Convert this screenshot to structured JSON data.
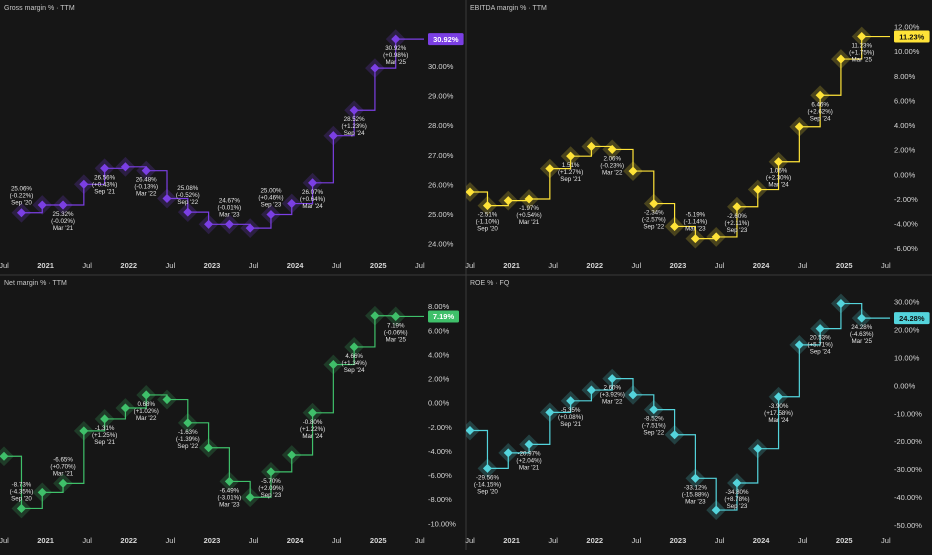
{
  "colors": {
    "background": "#161616",
    "divider": "#3a3a3a",
    "axis_text": "#d6d6d6",
    "gross": "#7b3fe4",
    "ebitda": "#ffe338",
    "net": "#3fc06a",
    "roe": "#54d4dc"
  },
  "chart_data": [
    {
      "type": "line",
      "title": "Gross margin % · TTM",
      "current_value_label": "30.92%",
      "color": "#7b3fe4",
      "y_ticks": [
        "30.00%",
        "29.00%",
        "28.00%",
        "27.00%",
        "26.00%",
        "25.00%",
        "24.00%"
      ],
      "y_tick_values": [
        30,
        29,
        28,
        27,
        26,
        25,
        24
      ],
      "ylim": [
        23.6,
        31.7
      ],
      "x_ticks": [
        "Jul",
        "2021",
        "Jul",
        "2022",
        "Jul",
        "2023",
        "Jul",
        "2024",
        "Jul",
        "2025",
        "Jul"
      ],
      "x_tick_values": [
        2020.5,
        2021,
        2021.5,
        2022,
        2022.5,
        2023,
        2023.5,
        2024,
        2024.5,
        2025,
        2025.5
      ],
      "xlim": [
        2020.5,
        2025.55
      ],
      "series": [
        {
          "x": [
            2020.71,
            2020.96,
            2021.21,
            2021.46,
            2021.71,
            2021.96,
            2022.21,
            2022.46,
            2022.71,
            2022.96,
            2023.21,
            2023.46,
            2023.71,
            2023.96,
            2024.21,
            2024.46,
            2024.71,
            2024.96,
            2025.21
          ],
          "values": [
            25.06,
            25.32,
            25.32,
            26.02,
            26.56,
            26.61,
            26.48,
            25.54,
            25.08,
            24.67,
            24.67,
            24.54,
            25.0,
            25.37,
            26.07,
            27.66,
            28.52,
            29.94,
            30.92
          ]
        }
      ],
      "annotations": [
        {
          "x": 2020.71,
          "y": 25.06,
          "lines": [
            "25.06%",
            "(-0.22%)",
            "Sep '20"
          ],
          "pos": "above"
        },
        {
          "x": 2021.21,
          "y": 25.32,
          "lines": [
            "25.32%",
            "(-0.02%)",
            "Mar '21"
          ],
          "pos": "below"
        },
        {
          "x": 2021.71,
          "y": 26.56,
          "lines": [
            "26.56%",
            "(+0.43%)",
            "Sep '21"
          ],
          "pos": "below"
        },
        {
          "x": 2022.21,
          "y": 26.48,
          "lines": [
            "26.48%",
            "(-0.13%)",
            "Mar '22"
          ],
          "pos": "below"
        },
        {
          "x": 2022.71,
          "y": 25.08,
          "lines": [
            "25.08%",
            "(-0.52%)",
            "Sep '22"
          ],
          "pos": "above"
        },
        {
          "x": 2023.21,
          "y": 24.67,
          "lines": [
            "24.67%",
            "(-0.01%)",
            "Mar '23"
          ],
          "pos": "above"
        },
        {
          "x": 2023.71,
          "y": 25.0,
          "lines": [
            "25.00%",
            "(+0.46%)",
            "Sep '23"
          ],
          "pos": "above"
        },
        {
          "x": 2024.21,
          "y": 26.07,
          "lines": [
            "26.07%",
            "(+0.64%)",
            "Mar '24"
          ],
          "pos": "below"
        },
        {
          "x": 2024.71,
          "y": 28.52,
          "lines": [
            "28.52%",
            "(+1.23%)",
            "Sep '24"
          ],
          "pos": "below"
        },
        {
          "x": 2025.21,
          "y": 30.92,
          "lines": [
            "30.92%",
            "(+0.98%)",
            "Mar '25"
          ],
          "pos": "below"
        }
      ]
    },
    {
      "type": "line",
      "title": "EBITDA margin % · TTM",
      "current_value_label": "11.23%",
      "color": "#ffe338",
      "y_ticks": [
        "12.00%",
        "10.00%",
        "8.00%",
        "6.00%",
        "4.00%",
        "2.00%",
        "0.00%",
        "-2.00%",
        "-4.00%",
        "-6.00%"
      ],
      "y_tick_values": [
        12,
        10,
        8,
        6,
        4,
        2,
        0,
        -2,
        -4,
        -6
      ],
      "ylim": [
        -6.6,
        12.9
      ],
      "x_ticks": [
        "Jul",
        "2021",
        "Jul",
        "2022",
        "Jul",
        "2023",
        "Jul",
        "2024",
        "Jul",
        "2025",
        "Jul"
      ],
      "x_tick_values": [
        2020.5,
        2021,
        2021.5,
        2022,
        2022.5,
        2023,
        2023.5,
        2024,
        2024.5,
        2025,
        2025.5
      ],
      "xlim": [
        2020.5,
        2025.55
      ],
      "series": [
        {
          "x": [
            2020.5,
            2020.71,
            2020.96,
            2021.21,
            2021.46,
            2021.71,
            2021.96,
            2022.21,
            2022.46,
            2022.71,
            2022.96,
            2023.21,
            2023.46,
            2023.71,
            2023.96,
            2024.21,
            2024.46,
            2024.71,
            2024.96,
            2025.21
          ],
          "values": [
            -1.4,
            -2.51,
            -2.1,
            -1.97,
            0.5,
            1.51,
            2.3,
            2.06,
            0.3,
            -2.34,
            -4.2,
            -5.19,
            -5.05,
            -2.6,
            -1.2,
            1.06,
            3.9,
            6.46,
            9.4,
            11.23
          ]
        }
      ],
      "annotations": [
        {
          "x": 2020.71,
          "y": -2.51,
          "lines": [
            "-2.51%",
            "(-1.10%)",
            "Sep '20"
          ],
          "pos": "below"
        },
        {
          "x": 2021.21,
          "y": -1.97,
          "lines": [
            "-1.97%",
            "(+0.54%)",
            "Mar '21"
          ],
          "pos": "below"
        },
        {
          "x": 2021.71,
          "y": 1.51,
          "lines": [
            "1.51%",
            "(+1.27%)",
            "Sep '21"
          ],
          "pos": "below"
        },
        {
          "x": 2022.21,
          "y": 2.06,
          "lines": [
            "2.06%",
            "(-0.23%)",
            "Mar '22"
          ],
          "pos": "below"
        },
        {
          "x": 2022.71,
          "y": -2.34,
          "lines": [
            "-2.34%",
            "(-2.57%)",
            "Sep '22"
          ],
          "pos": "below"
        },
        {
          "x": 2023.21,
          "y": -5.19,
          "lines": [
            "-5.19%",
            "(-1.14%)",
            "Mar '23"
          ],
          "pos": "above"
        },
        {
          "x": 2023.71,
          "y": -2.6,
          "lines": [
            "-2.60%",
            "(+2.11%)",
            "Sep '23"
          ],
          "pos": "below"
        },
        {
          "x": 2024.21,
          "y": 1.06,
          "lines": [
            "1.06%",
            "(+2.30%)",
            "Mar '24"
          ],
          "pos": "below"
        },
        {
          "x": 2024.71,
          "y": 6.46,
          "lines": [
            "6.46%",
            "(+2.62%)",
            "Sep '24"
          ],
          "pos": "below"
        },
        {
          "x": 2025.21,
          "y": 11.23,
          "lines": [
            "11.23%",
            "(+1.75%)",
            "Mar '25"
          ],
          "pos": "below"
        }
      ]
    },
    {
      "type": "line",
      "title": "Net margin % · TTM",
      "current_value_label": "7.19%",
      "color": "#3fc06a",
      "y_ticks": [
        "8.00%",
        "6.00%",
        "4.00%",
        "2.00%",
        "0.00%",
        "-2.00%",
        "-4.00%",
        "-6.00%",
        "-8.00%",
        "-10.00%"
      ],
      "y_tick_values": [
        8,
        6,
        4,
        2,
        0,
        -2,
        -4,
        -6,
        -8,
        -10
      ],
      "ylim": [
        -10.6,
        9.3
      ],
      "x_ticks": [
        "Jul",
        "2021",
        "Jul",
        "2022",
        "Jul",
        "2023",
        "Jul",
        "2024",
        "Jul",
        "2025",
        "Jul"
      ],
      "x_tick_values": [
        2020.5,
        2021,
        2021.5,
        2022,
        2022.5,
        2023,
        2023.5,
        2024,
        2024.5,
        2025,
        2025.5
      ],
      "xlim": [
        2020.5,
        2025.55
      ],
      "series": [
        {
          "x": [
            2020.5,
            2020.71,
            2020.96,
            2021.21,
            2021.46,
            2021.71,
            2021.96,
            2022.21,
            2022.46,
            2022.71,
            2022.96,
            2023.21,
            2023.46,
            2023.71,
            2023.96,
            2024.21,
            2024.46,
            2024.71,
            2024.96,
            2025.21
          ],
          "values": [
            -4.4,
            -8.73,
            -7.4,
            -6.65,
            -2.3,
            -1.31,
            -0.4,
            0.68,
            0.3,
            -1.63,
            -3.7,
            -6.49,
            -7.8,
            -5.7,
            -4.3,
            -0.8,
            3.2,
            4.66,
            7.25,
            7.19
          ]
        }
      ],
      "annotations": [
        {
          "x": 2020.71,
          "y": -8.73,
          "lines": [
            "-8.73%",
            "(-4.35%)",
            "Sep '20"
          ],
          "pos": "above"
        },
        {
          "x": 2021.21,
          "y": -6.65,
          "lines": [
            "-6.65%",
            "(+0.70%)",
            "Mar '21"
          ],
          "pos": "above"
        },
        {
          "x": 2021.71,
          "y": -1.31,
          "lines": [
            "-1.31%",
            "(+1.25%)",
            "Sep '21"
          ],
          "pos": "below"
        },
        {
          "x": 2022.21,
          "y": 0.68,
          "lines": [
            "0.68%",
            "(+1.02%)",
            "Mar '22"
          ],
          "pos": "below"
        },
        {
          "x": 2022.71,
          "y": -1.63,
          "lines": [
            "-1.63%",
            "(-1.39%)",
            "Sep '22"
          ],
          "pos": "below"
        },
        {
          "x": 2023.21,
          "y": -6.49,
          "lines": [
            "-6.49%",
            "(-3.01%)",
            "Mar '23"
          ],
          "pos": "below"
        },
        {
          "x": 2023.71,
          "y": -5.7,
          "lines": [
            "-5.70%",
            "(+2.09%)",
            "Sep '23"
          ],
          "pos": "below"
        },
        {
          "x": 2024.21,
          "y": -0.8,
          "lines": [
            "-0.80%",
            "(+1.22%)",
            "Mar '24"
          ],
          "pos": "below"
        },
        {
          "x": 2024.71,
          "y": 4.66,
          "lines": [
            "4.66%",
            "(+1.34%)",
            "Sep '24"
          ],
          "pos": "below"
        },
        {
          "x": 2025.21,
          "y": 7.19,
          "lines": [
            "7.19%",
            "(-0.06%)",
            "Mar '25"
          ],
          "pos": "below"
        }
      ]
    },
    {
      "type": "line",
      "title": "ROE % · FQ",
      "current_value_label": "24.28%",
      "color": "#54d4dc",
      "y_ticks": [
        "30.00%",
        "20.00%",
        "10.00%",
        "0.00%",
        "-10.00%",
        "-20.00%",
        "-30.00%",
        "-40.00%",
        "-50.00%"
      ],
      "y_tick_values": [
        30,
        20,
        10,
        0,
        -10,
        -20,
        -30,
        -40,
        -50
      ],
      "ylim": [
        -52,
        34
      ],
      "x_ticks": [
        "Jul",
        "2021",
        "Jul",
        "2022",
        "Jul",
        "2023",
        "Jul",
        "2024",
        "Jul",
        "2025",
        "Jul"
      ],
      "x_tick_values": [
        2020.5,
        2021,
        2021.5,
        2022,
        2022.5,
        2023,
        2023.5,
        2024,
        2024.5,
        2025,
        2025.5
      ],
      "xlim": [
        2020.5,
        2025.55
      ],
      "series": [
        {
          "x": [
            2020.5,
            2020.71,
            2020.96,
            2021.21,
            2021.46,
            2021.71,
            2021.96,
            2022.21,
            2022.46,
            2022.71,
            2022.96,
            2023.21,
            2023.46,
            2023.71,
            2023.96,
            2024.21,
            2024.46,
            2024.71,
            2024.96,
            2025.21
          ],
          "values": [
            -16,
            -29.56,
            -24,
            -20.97,
            -9.5,
            -5.35,
            -1.5,
            2.6,
            -3.2,
            -8.52,
            -17.5,
            -33.12,
            -44.5,
            -34.8,
            -22.5,
            -3.9,
            14.7,
            20.53,
            29.5,
            24.28
          ]
        }
      ],
      "annotations": [
        {
          "x": 2020.71,
          "y": -29.56,
          "lines": [
            "-29.56%",
            "(-14.15%)",
            "Sep '20"
          ],
          "pos": "below"
        },
        {
          "x": 2021.21,
          "y": -20.97,
          "lines": [
            "-20.97%",
            "(+2.04%)",
            "Mar '21"
          ],
          "pos": "below"
        },
        {
          "x": 2021.71,
          "y": -5.35,
          "lines": [
            "-5.35%",
            "(+0.08%)",
            "Sep '21"
          ],
          "pos": "below"
        },
        {
          "x": 2022.21,
          "y": 2.6,
          "lines": [
            "2.60%",
            "(+3.92%)",
            "Mar '22"
          ],
          "pos": "below"
        },
        {
          "x": 2022.71,
          "y": -8.52,
          "lines": [
            "-8.52%",
            "(-7.51%)",
            "Sep '22"
          ],
          "pos": "below"
        },
        {
          "x": 2023.21,
          "y": -33.12,
          "lines": [
            "-33.12%",
            "(-15.88%)",
            "Mar '23"
          ],
          "pos": "below"
        },
        {
          "x": 2023.71,
          "y": -34.8,
          "lines": [
            "-34.80%",
            "(+8.78%)",
            "Sep '23"
          ],
          "pos": "below"
        },
        {
          "x": 2024.21,
          "y": -3.9,
          "lines": [
            "-3.90%",
            "(+17.58%)",
            "Mar '24"
          ],
          "pos": "below"
        },
        {
          "x": 2024.71,
          "y": 20.53,
          "lines": [
            "20.53%",
            "(+5.71%)",
            "Sep '24"
          ],
          "pos": "below"
        },
        {
          "x": 2025.21,
          "y": 24.28,
          "lines": [
            "24.28%",
            "(-4.63%)",
            "Mar '25"
          ],
          "pos": "below"
        }
      ]
    }
  ]
}
